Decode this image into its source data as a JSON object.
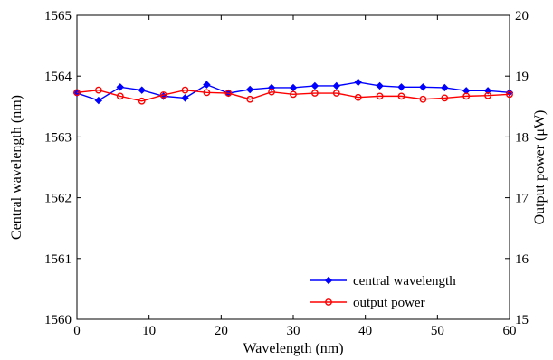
{
  "chart_data": {
    "type": "line",
    "xlabel": "Wavelength (nm)",
    "ylabel_left": "Central wavelength (nm)",
    "ylabel_right": "Output power (μW)",
    "xlim": [
      0,
      60
    ],
    "ylim_left": [
      1560,
      1565
    ],
    "ylim_right": [
      15,
      20
    ],
    "x_ticks": [
      "0",
      "10",
      "20",
      "30",
      "40",
      "50",
      "60"
    ],
    "y_left_ticks": [
      "1560",
      "1561",
      "1562",
      "1563",
      "1564",
      "1565"
    ],
    "y_right_ticks": [
      "15",
      "16",
      "17",
      "18",
      "19",
      "20"
    ],
    "grid": false,
    "legend_position": "bottom-right",
    "x": [
      0,
      3,
      6,
      9,
      12,
      15,
      18,
      21,
      24,
      27,
      30,
      33,
      36,
      39,
      42,
      45,
      48,
      51,
      54,
      57,
      60
    ],
    "series": [
      {
        "name": "central wavelength",
        "axis": "left",
        "color": "#0000ff",
        "marker": "diamond",
        "values": [
          1563.72,
          1563.6,
          1563.82,
          1563.77,
          1563.67,
          1563.64,
          1563.86,
          1563.72,
          1563.78,
          1563.81,
          1563.81,
          1563.84,
          1563.84,
          1563.9,
          1563.84,
          1563.82,
          1563.82,
          1563.81,
          1563.76,
          1563.76,
          1563.73
        ]
      },
      {
        "name": "output power",
        "axis": "right",
        "color": "#ff0000",
        "marker": "circle",
        "values": [
          18.73,
          18.77,
          18.67,
          18.59,
          18.69,
          18.77,
          18.73,
          18.72,
          18.62,
          18.74,
          18.7,
          18.72,
          18.72,
          18.65,
          18.67,
          18.67,
          18.62,
          18.64,
          18.67,
          18.68,
          18.7
        ]
      }
    ]
  }
}
